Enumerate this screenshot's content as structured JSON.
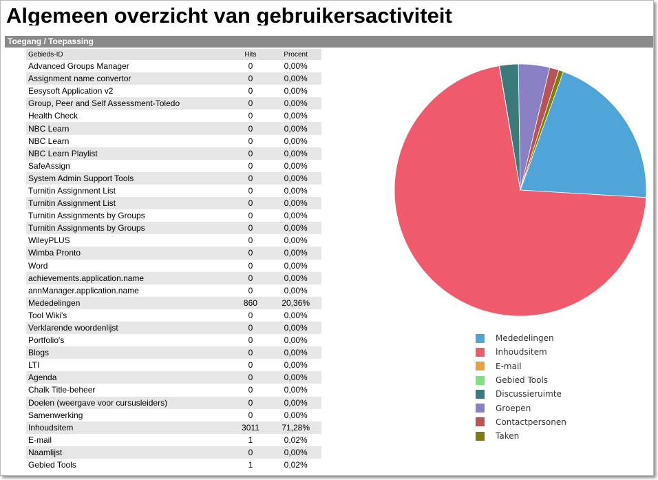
{
  "page_title": "Algemeen overzicht van gebruikersactiviteit",
  "section_title": "Toegang / Toepassing",
  "table": {
    "headers": [
      "Gebieds-ID",
      "Hits",
      "Procent"
    ],
    "rows": [
      [
        "Advanced Groups Manager",
        "0",
        "0,00%"
      ],
      [
        "Assignment name convertor",
        "0",
        "0,00%"
      ],
      [
        "Eesysoft Application v2",
        "0",
        "0,00%"
      ],
      [
        "Group, Peer and Self Assessment-Toledo",
        "0",
        "0,00%"
      ],
      [
        "Health Check",
        "0",
        "0,00%"
      ],
      [
        "NBC Learn",
        "0",
        "0,00%"
      ],
      [
        "NBC Learn",
        "0",
        "0,00%"
      ],
      [
        "NBC Learn Playlist",
        "0",
        "0,00%"
      ],
      [
        "SafeAssign",
        "0",
        "0,00%"
      ],
      [
        "System Admin Support Tools",
        "0",
        "0,00%"
      ],
      [
        "Turnitin Assignment List",
        "0",
        "0,00%"
      ],
      [
        "Turnitin Assignment List",
        "0",
        "0,00%"
      ],
      [
        "Turnitin Assignments by Groups",
        "0",
        "0,00%"
      ],
      [
        "Turnitin Assignments by Groups",
        "0",
        "0,00%"
      ],
      [
        "WileyPLUS",
        "0",
        "0,00%"
      ],
      [
        "Wimba Pronto",
        "0",
        "0,00%"
      ],
      [
        "Word",
        "0",
        "0,00%"
      ],
      [
        "achievements.application.name",
        "0",
        "0,00%"
      ],
      [
        "annManager.application.name",
        "0",
        "0,00%"
      ],
      [
        "Mededelingen",
        "860",
        "20,36%"
      ],
      [
        "Tool Wiki's",
        "0",
        "0,00%"
      ],
      [
        "Verklarende woordenlijst",
        "0",
        "0,00%"
      ],
      [
        "Portfolio's",
        "0",
        "0,00%"
      ],
      [
        "Blogs",
        "0",
        "0,00%"
      ],
      [
        "LTI",
        "0",
        "0,00%"
      ],
      [
        "Agenda",
        "0",
        "0,00%"
      ],
      [
        "Chalk Title-beheer",
        "0",
        "0,00%"
      ],
      [
        "Doelen (weergave voor cursusleiders)",
        "0",
        "0,00%"
      ],
      [
        "Samenwerking",
        "0",
        "0,00%"
      ],
      [
        "Inhoudsitem",
        "3011",
        "71,28%"
      ],
      [
        "E-mail",
        "1",
        "0,02%"
      ],
      [
        "Naamlijst",
        "0",
        "0,00%"
      ],
      [
        "Gebied Tools",
        "1",
        "0,02%"
      ]
    ]
  },
  "chart_data": {
    "type": "pie",
    "start_angle_deg": 70,
    "slices": [
      {
        "label": "Mededelingen",
        "value": 20.36,
        "color": "#4fa5d8"
      },
      {
        "label": "Inhoudsitem",
        "value": 71.28,
        "color": "#ef5a6c"
      },
      {
        "label": "E-mail",
        "value": 0.02,
        "color": "#e8a33d"
      },
      {
        "label": "Gebied Tools",
        "value": 0.02,
        "color": "#7ee07e"
      },
      {
        "label": "Discussieruimte",
        "value": 2.4,
        "color": "#3b7a7a"
      },
      {
        "label": "Groepen",
        "value": 4.0,
        "color": "#8a80c4"
      },
      {
        "label": "Contactpersonen",
        "value": 1.2,
        "color": "#b85456"
      },
      {
        "label": "Taken",
        "value": 0.6,
        "color": "#7c7c0a"
      }
    ],
    "legend_position": "bottom"
  }
}
